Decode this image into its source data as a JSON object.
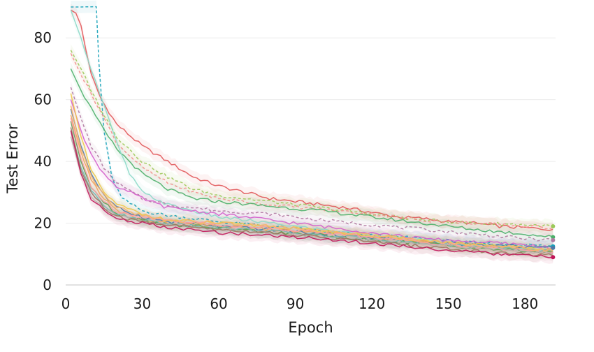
{
  "chart_data": {
    "type": "line",
    "title": "",
    "xlabel": "Epoch",
    "ylabel": "Test Error",
    "xlim": [
      0,
      192
    ],
    "ylim": [
      0,
      90
    ],
    "xticks": [
      0,
      30,
      60,
      90,
      120,
      150,
      180
    ],
    "yticks": [
      0,
      20,
      40,
      60,
      80
    ],
    "grid": "horizontal",
    "legend": "none",
    "series": [
      {
        "color": "#e15759",
        "dash": false,
        "end_marker": false,
        "points": [
          [
            2,
            89
          ],
          [
            4,
            88
          ],
          [
            6,
            84
          ],
          [
            8,
            76
          ],
          [
            10,
            68
          ],
          [
            14,
            60
          ],
          [
            20,
            52
          ],
          [
            30,
            45
          ],
          [
            40,
            40
          ],
          [
            50,
            35
          ],
          [
            60,
            32
          ],
          [
            70,
            30
          ],
          [
            80,
            28
          ],
          [
            90,
            27
          ],
          [
            100,
            26
          ],
          [
            110,
            25
          ],
          [
            120,
            23.5
          ],
          [
            130,
            22
          ],
          [
            140,
            21.5
          ],
          [
            150,
            20.5
          ],
          [
            160,
            20
          ],
          [
            170,
            19
          ],
          [
            180,
            18.5
          ],
          [
            191,
            18
          ]
        ]
      },
      {
        "color": "#17a2b8",
        "dash": true,
        "end_marker": true,
        "points": [
          [
            2,
            90
          ],
          [
            6,
            90
          ],
          [
            10,
            90
          ],
          [
            12,
            90
          ],
          [
            13,
            72
          ],
          [
            15,
            50
          ],
          [
            18,
            35
          ],
          [
            22,
            28
          ],
          [
            30,
            24
          ],
          [
            40,
            22.5
          ],
          [
            60,
            20.5
          ],
          [
            80,
            19
          ],
          [
            100,
            17.5
          ],
          [
            120,
            16
          ],
          [
            140,
            15
          ],
          [
            160,
            13.5
          ],
          [
            180,
            13
          ],
          [
            191,
            12.5
          ]
        ]
      },
      {
        "color": "#9bc959",
        "dash": true,
        "end_marker": true,
        "points": [
          [
            2,
            76
          ],
          [
            6,
            70
          ],
          [
            10,
            63
          ],
          [
            15,
            55
          ],
          [
            20,
            48
          ],
          [
            30,
            40
          ],
          [
            40,
            35
          ],
          [
            50,
            31
          ],
          [
            60,
            29
          ],
          [
            80,
            27
          ],
          [
            100,
            25
          ],
          [
            120,
            23
          ],
          [
            140,
            21
          ],
          [
            160,
            20
          ],
          [
            180,
            19.5
          ],
          [
            191,
            19
          ]
        ]
      },
      {
        "color": "#f28e8e",
        "dash": true,
        "end_marker": false,
        "points": [
          [
            2,
            75
          ],
          [
            6,
            68
          ],
          [
            10,
            62
          ],
          [
            15,
            54
          ],
          [
            20,
            46
          ],
          [
            30,
            38
          ],
          [
            40,
            33
          ],
          [
            50,
            30
          ],
          [
            60,
            28
          ],
          [
            80,
            26
          ],
          [
            100,
            24.5
          ],
          [
            120,
            23
          ],
          [
            140,
            21
          ],
          [
            160,
            20
          ],
          [
            180,
            19
          ],
          [
            191,
            18.5
          ]
        ]
      },
      {
        "color": "#4caf6a",
        "dash": false,
        "end_marker": true,
        "points": [
          [
            2,
            70
          ],
          [
            6,
            63
          ],
          [
            10,
            57
          ],
          [
            15,
            50
          ],
          [
            20,
            44
          ],
          [
            30,
            36
          ],
          [
            40,
            31
          ],
          [
            50,
            28
          ],
          [
            60,
            27
          ],
          [
            80,
            25.5
          ],
          [
            100,
            24
          ],
          [
            120,
            22
          ],
          [
            140,
            20
          ],
          [
            160,
            18
          ],
          [
            180,
            16.5
          ],
          [
            191,
            15.5
          ]
        ]
      },
      {
        "color": "#8cd9c8",
        "dash": false,
        "end_marker": false,
        "points": [
          [
            2,
            89
          ],
          [
            6,
            80
          ],
          [
            10,
            70
          ],
          [
            15,
            58
          ],
          [
            20,
            46
          ],
          [
            25,
            36
          ],
          [
            30,
            30
          ],
          [
            40,
            26
          ],
          [
            50,
            24
          ],
          [
            60,
            22
          ],
          [
            80,
            20
          ],
          [
            100,
            18
          ],
          [
            120,
            16
          ],
          [
            140,
            14.5
          ],
          [
            160,
            13
          ],
          [
            180,
            12
          ],
          [
            191,
            11.5
          ]
        ]
      },
      {
        "color": "#b07aa1",
        "dash": true,
        "end_marker": true,
        "points": [
          [
            2,
            64
          ],
          [
            6,
            54
          ],
          [
            10,
            45
          ],
          [
            15,
            38
          ],
          [
            20,
            33
          ],
          [
            30,
            28
          ],
          [
            40,
            26
          ],
          [
            60,
            24
          ],
          [
            80,
            23
          ],
          [
            100,
            21
          ],
          [
            120,
            19.5
          ],
          [
            140,
            18
          ],
          [
            160,
            16.5
          ],
          [
            180,
            15
          ],
          [
            191,
            14.5
          ]
        ]
      },
      {
        "color": "#d45fcb",
        "dash": false,
        "end_marker": false,
        "points": [
          [
            2,
            60
          ],
          [
            6,
            50
          ],
          [
            10,
            42
          ],
          [
            15,
            36
          ],
          [
            20,
            32
          ],
          [
            30,
            28
          ],
          [
            40,
            25
          ],
          [
            60,
            23
          ],
          [
            80,
            21
          ],
          [
            100,
            19
          ],
          [
            120,
            17
          ],
          [
            140,
            15
          ],
          [
            160,
            14
          ],
          [
            180,
            13
          ],
          [
            191,
            12
          ]
        ]
      },
      {
        "color": "#4e79a7",
        "dash": false,
        "end_marker": true,
        "points": [
          [
            2,
            57
          ],
          [
            6,
            45
          ],
          [
            10,
            36
          ],
          [
            15,
            29
          ],
          [
            20,
            25
          ],
          [
            30,
            22
          ],
          [
            40,
            20.5
          ],
          [
            60,
            19
          ],
          [
            80,
            18
          ],
          [
            100,
            16.5
          ],
          [
            120,
            15.5
          ],
          [
            140,
            14
          ],
          [
            160,
            13
          ],
          [
            180,
            12.5
          ],
          [
            191,
            12
          ]
        ]
      },
      {
        "color": "#f0a35e",
        "dash": false,
        "end_marker": false,
        "points": [
          [
            2,
            55
          ],
          [
            6,
            43
          ],
          [
            10,
            34
          ],
          [
            15,
            28
          ],
          [
            20,
            24
          ],
          [
            30,
            21
          ],
          [
            40,
            20
          ],
          [
            60,
            19
          ],
          [
            80,
            18
          ],
          [
            100,
            17
          ],
          [
            120,
            15.5
          ],
          [
            140,
            14
          ],
          [
            160,
            12.5
          ],
          [
            180,
            11.5
          ],
          [
            191,
            11
          ]
        ]
      },
      {
        "color": "#edc948",
        "dash": false,
        "end_marker": false,
        "points": [
          [
            2,
            62
          ],
          [
            6,
            48
          ],
          [
            10,
            37
          ],
          [
            15,
            30
          ],
          [
            20,
            26
          ],
          [
            30,
            23
          ],
          [
            40,
            21
          ],
          [
            60,
            20
          ],
          [
            80,
            19
          ],
          [
            100,
            17.5
          ],
          [
            120,
            16
          ],
          [
            140,
            14.5
          ],
          [
            160,
            13
          ],
          [
            180,
            12
          ],
          [
            191,
            11.5
          ]
        ]
      },
      {
        "color": "#59a14f",
        "dash": false,
        "end_marker": false,
        "points": [
          [
            2,
            53
          ],
          [
            6,
            40
          ],
          [
            10,
            32
          ],
          [
            15,
            27
          ],
          [
            20,
            23
          ],
          [
            30,
            21
          ],
          [
            40,
            19.5
          ],
          [
            60,
            18.5
          ],
          [
            80,
            17
          ],
          [
            100,
            16
          ],
          [
            120,
            14.5
          ],
          [
            140,
            13.5
          ],
          [
            160,
            12
          ],
          [
            180,
            11
          ],
          [
            191,
            10.5
          ]
        ]
      },
      {
        "color": "#76b7b2",
        "dash": false,
        "end_marker": false,
        "points": [
          [
            2,
            50
          ],
          [
            6,
            38
          ],
          [
            10,
            31
          ],
          [
            15,
            26
          ],
          [
            20,
            23
          ],
          [
            30,
            21
          ],
          [
            40,
            20
          ],
          [
            60,
            18.5
          ],
          [
            80,
            17.5
          ],
          [
            100,
            16
          ],
          [
            120,
            15
          ],
          [
            140,
            13.5
          ],
          [
            160,
            12.5
          ],
          [
            180,
            11.5
          ],
          [
            191,
            11
          ]
        ]
      },
      {
        "color": "#ff9da7",
        "dash": false,
        "end_marker": false,
        "points": [
          [
            2,
            54
          ],
          [
            6,
            41
          ],
          [
            10,
            32
          ],
          [
            15,
            27
          ],
          [
            20,
            24
          ],
          [
            30,
            22
          ],
          [
            40,
            21
          ],
          [
            60,
            19.5
          ],
          [
            80,
            18.5
          ],
          [
            100,
            17
          ],
          [
            120,
            15.5
          ],
          [
            140,
            14
          ],
          [
            160,
            12.5
          ],
          [
            180,
            11
          ],
          [
            191,
            10.5
          ]
        ]
      },
      {
        "color": "#bab0ac",
        "dash": false,
        "end_marker": false,
        "points": [
          [
            2,
            48
          ],
          [
            6,
            36
          ],
          [
            10,
            29
          ],
          [
            15,
            25
          ],
          [
            20,
            22.5
          ],
          [
            30,
            20.5
          ],
          [
            40,
            19.5
          ],
          [
            60,
            18
          ],
          [
            80,
            17
          ],
          [
            100,
            15.5
          ],
          [
            120,
            14.5
          ],
          [
            140,
            13
          ],
          [
            160,
            12
          ],
          [
            180,
            11
          ],
          [
            191,
            10
          ]
        ]
      },
      {
        "color": "#9c755f",
        "dash": false,
        "end_marker": false,
        "points": [
          [
            2,
            51
          ],
          [
            6,
            37
          ],
          [
            10,
            30
          ],
          [
            15,
            25
          ],
          [
            20,
            22
          ],
          [
            30,
            20.5
          ],
          [
            40,
            19.5
          ],
          [
            60,
            18
          ],
          [
            80,
            17
          ],
          [
            100,
            15.5
          ],
          [
            120,
            14
          ],
          [
            140,
            12.5
          ],
          [
            160,
            11
          ],
          [
            180,
            10
          ],
          [
            191,
            9.5
          ]
        ]
      },
      {
        "color": "#f6b26b",
        "dash": false,
        "end_marker": false,
        "points": [
          [
            2,
            58
          ],
          [
            6,
            44
          ],
          [
            10,
            35
          ],
          [
            15,
            29
          ],
          [
            20,
            25
          ],
          [
            30,
            22.5
          ],
          [
            40,
            21
          ],
          [
            60,
            20
          ],
          [
            80,
            19
          ],
          [
            100,
            17.5
          ],
          [
            120,
            16
          ],
          [
            140,
            14.5
          ],
          [
            160,
            13
          ],
          [
            180,
            12
          ],
          [
            191,
            11
          ]
        ]
      },
      {
        "color": "#c2185b",
        "dash": false,
        "end_marker": true,
        "points": [
          [
            2,
            50
          ],
          [
            6,
            36
          ],
          [
            10,
            28
          ],
          [
            15,
            24
          ],
          [
            20,
            21.5
          ],
          [
            30,
            20
          ],
          [
            40,
            18.5
          ],
          [
            60,
            17
          ],
          [
            80,
            16
          ],
          [
            100,
            15
          ],
          [
            120,
            13.5
          ],
          [
            140,
            12
          ],
          [
            160,
            10.5
          ],
          [
            180,
            9.5
          ],
          [
            191,
            9
          ]
        ]
      }
    ]
  }
}
